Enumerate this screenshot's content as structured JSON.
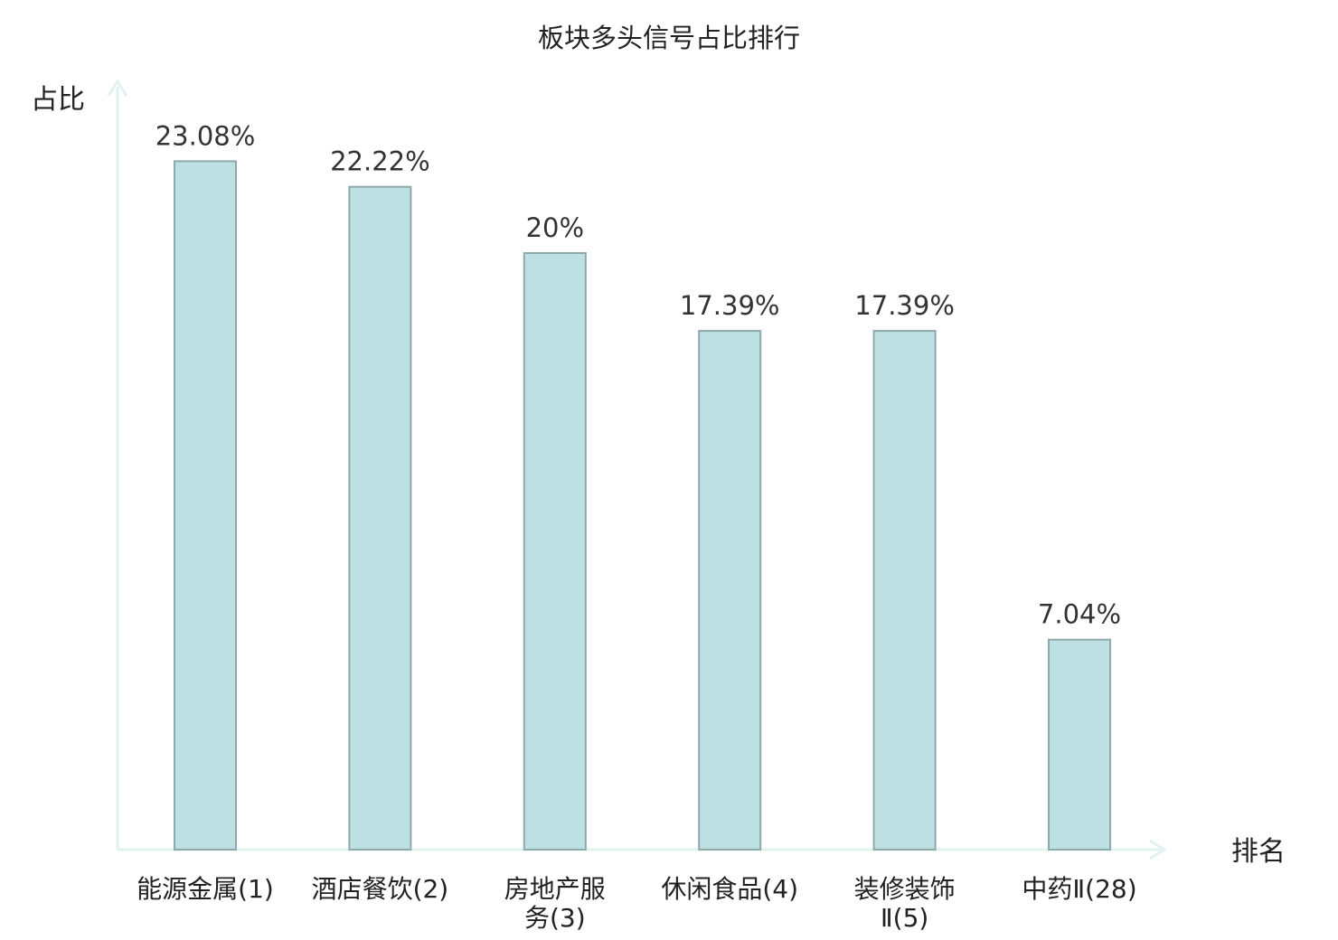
{
  "chart_data": {
    "type": "bar",
    "title": "板块多头信号占比排行",
    "ylabel": "占比",
    "xlabel": "排名",
    "categories": [
      [
        "能源金属(1)"
      ],
      [
        "酒店餐饮(2)"
      ],
      [
        "房地产服",
        "务(3)"
      ],
      [
        "休闲食品(4)"
      ],
      [
        "装修装饰",
        "Ⅱ(5)"
      ],
      [
        "中药Ⅱ(28)"
      ]
    ],
    "values": [
      23.08,
      22.22,
      20,
      17.39,
      17.39,
      7.04
    ],
    "value_labels": [
      "23.08%",
      "22.22%",
      "20%",
      "17.39%",
      "17.39%",
      "7.04%"
    ],
    "highlight_index": 5,
    "ylim": [
      0,
      25
    ],
    "grid": false,
    "colors": {
      "bar_fill": "#bde0e2",
      "bar_stroke": "#8fa8aa",
      "axis": "#e0f3f1",
      "highlight_text": "#e02020",
      "text": "#222222"
    }
  }
}
